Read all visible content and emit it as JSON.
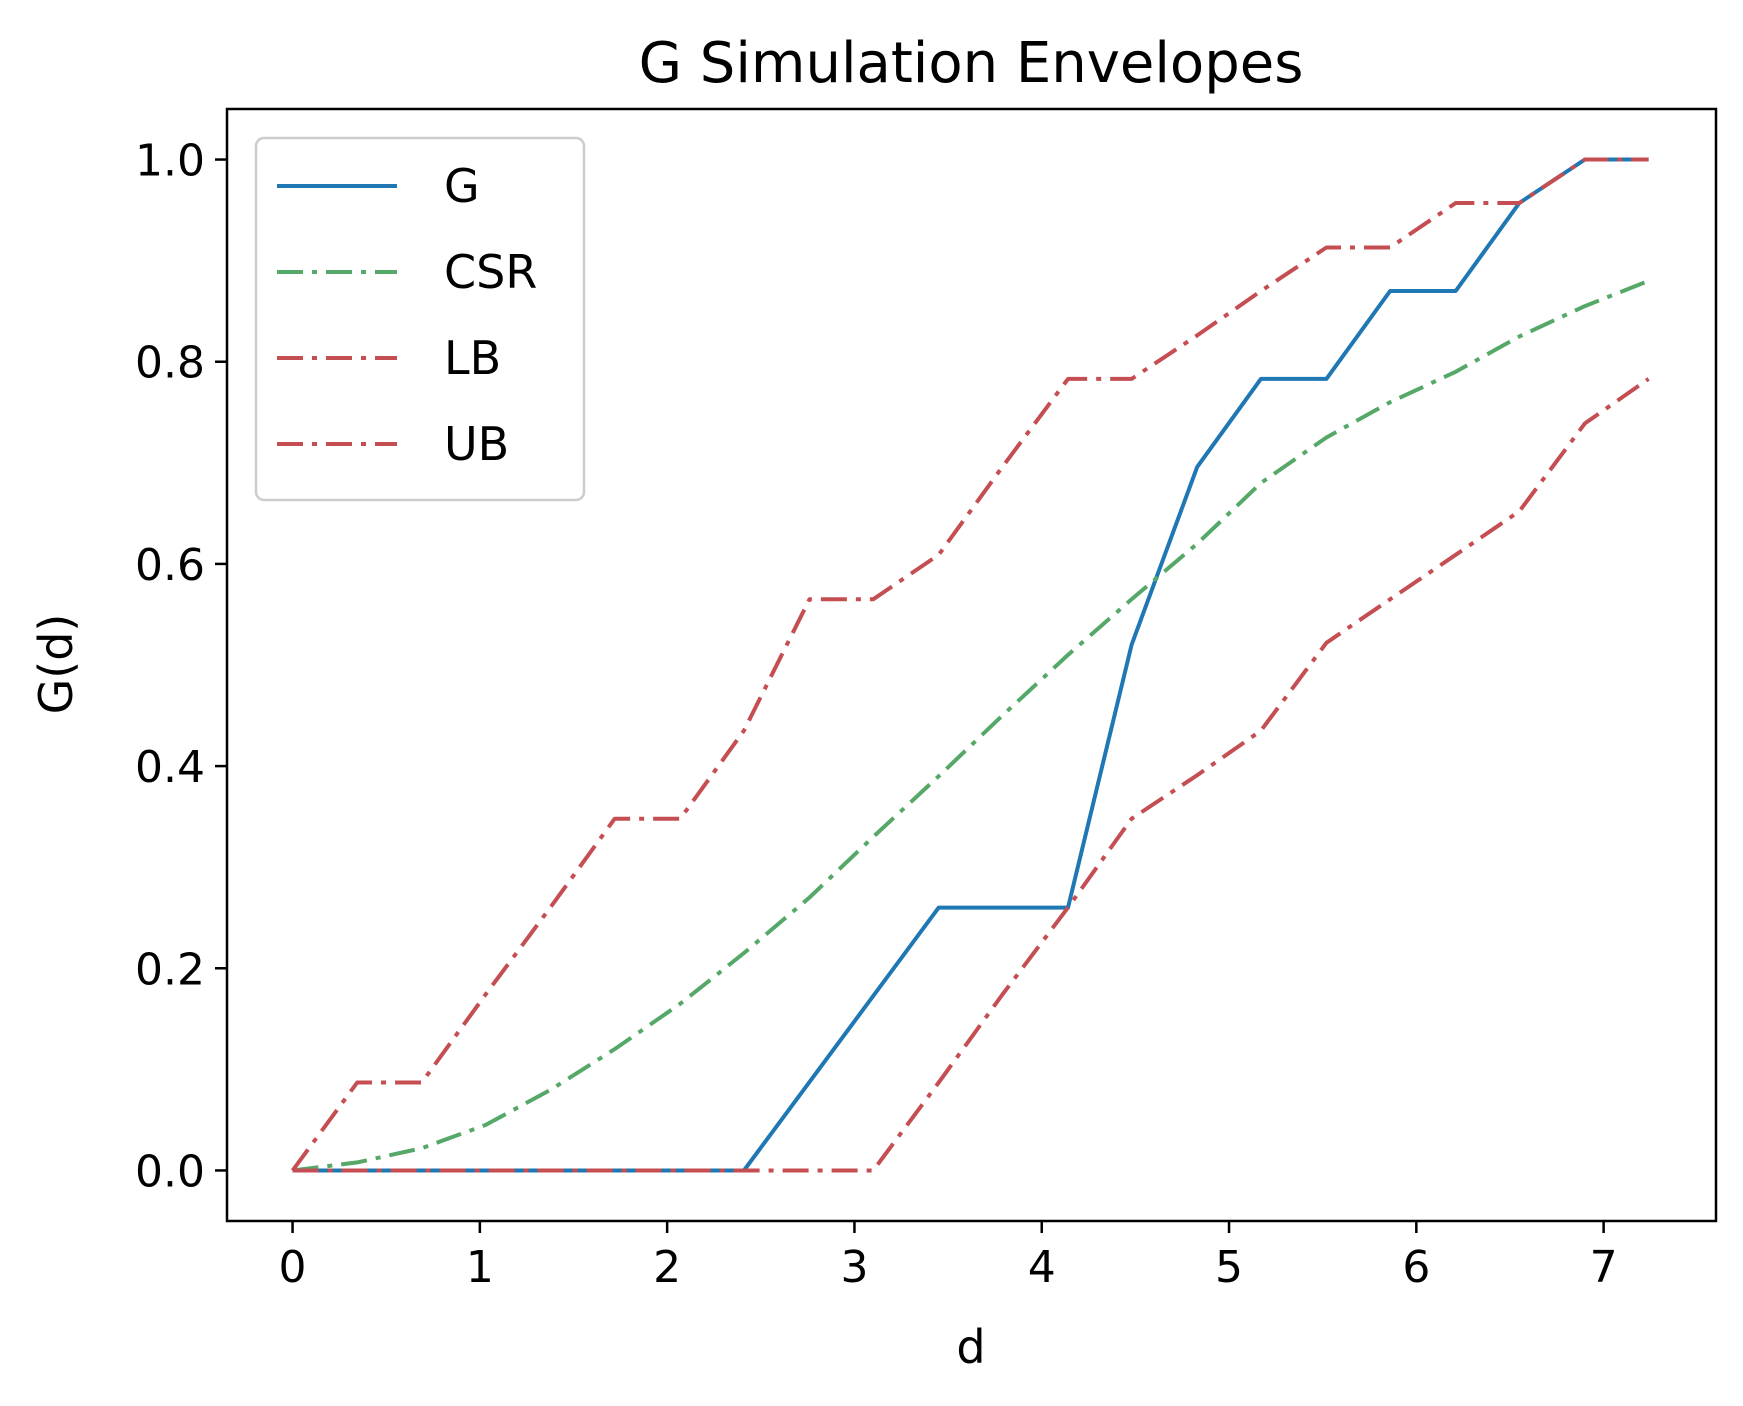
{
  "chart_data": {
    "type": "line",
    "title": "G Simulation Envelopes",
    "xlabel": "d",
    "ylabel": "G(d)",
    "xlim": [
      -0.35,
      7.6
    ],
    "ylim": [
      -0.05,
      1.05
    ],
    "xticks": [
      0,
      1,
      2,
      3,
      4,
      5,
      6,
      7
    ],
    "xtick_labels": [
      "0",
      "1",
      "2",
      "3",
      "4",
      "5",
      "6",
      "7"
    ],
    "yticks": [
      0.0,
      0.2,
      0.4,
      0.6,
      0.8,
      1.0
    ],
    "ytick_labels": [
      "0.0",
      "0.2",
      "0.4",
      "0.6",
      "0.8",
      "1.0"
    ],
    "grid": false,
    "legend_position": "top-left",
    "series": [
      {
        "name": "G",
        "color": "#1f77b4",
        "style": "solid",
        "x": [
          0,
          2.41,
          3.45,
          4.14,
          4.48,
          4.83,
          5.17,
          5.52,
          5.86,
          6.21,
          6.55,
          6.9,
          7.24
        ],
        "y": [
          0,
          0,
          0.26,
          0.26,
          0.52,
          0.696,
          0.783,
          0.783,
          0.87,
          0.87,
          0.957,
          1.0,
          1.0
        ]
      },
      {
        "name": "CSR",
        "color": "#55a868",
        "style": "dashdot",
        "x": [
          0,
          0.345,
          0.69,
          1.03,
          1.38,
          1.72,
          2.07,
          2.41,
          2.76,
          3.1,
          3.45,
          3.79,
          4.14,
          4.48,
          4.83,
          5.17,
          5.52,
          5.86,
          6.21,
          6.55,
          6.9,
          7.24
        ],
        "y": [
          0,
          0.008,
          0.022,
          0.045,
          0.08,
          0.12,
          0.165,
          0.215,
          0.27,
          0.33,
          0.39,
          0.45,
          0.51,
          0.565,
          0.62,
          0.68,
          0.725,
          0.76,
          0.79,
          0.825,
          0.855,
          0.88
        ]
      },
      {
        "name": "LB",
        "color": "#c44e52",
        "style": "dashdot",
        "x": [
          0,
          3.1,
          3.45,
          3.79,
          4.14,
          4.48,
          4.83,
          5.17,
          5.52,
          5.86,
          6.21,
          6.55,
          6.9,
          7.24
        ],
        "y": [
          0,
          0,
          0.087,
          0.174,
          0.26,
          0.348,
          0.391,
          0.435,
          0.522,
          0.565,
          0.609,
          0.652,
          0.739,
          0.783
        ]
      },
      {
        "name": "UB",
        "color": "#c44e52",
        "style": "dashdot",
        "x": [
          0,
          0.345,
          0.69,
          1.03,
          1.38,
          1.72,
          2.07,
          2.41,
          2.76,
          3.1,
          3.45,
          3.79,
          4.14,
          4.48,
          4.83,
          5.17,
          5.52,
          5.86,
          6.21,
          6.55,
          6.9,
          7.24
        ],
        "y": [
          0,
          0.087,
          0.087,
          0.174,
          0.261,
          0.348,
          0.348,
          0.435,
          0.565,
          0.565,
          0.609,
          0.696,
          0.783,
          0.783,
          0.826,
          0.87,
          0.913,
          0.913,
          0.957,
          0.957,
          1.0,
          1.0
        ]
      }
    ]
  }
}
